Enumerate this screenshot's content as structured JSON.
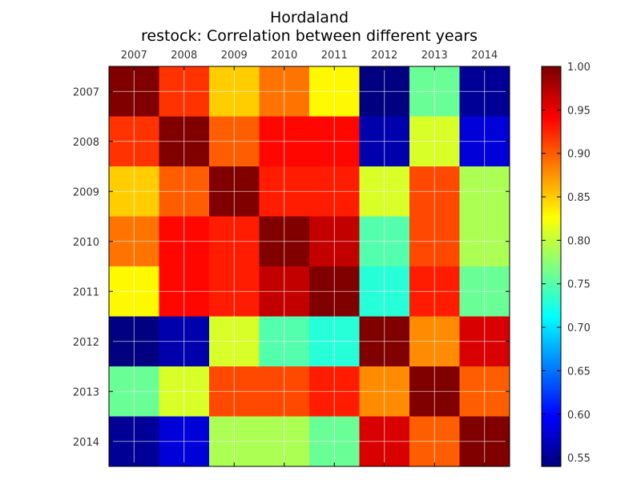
{
  "chart_data": {
    "type": "heatmap",
    "title": "Hordaland",
    "subtitle": "restock: Correlation between different years",
    "x_categories": [
      "2007",
      "2008",
      "2009",
      "2010",
      "2011",
      "2012",
      "2013",
      "2014"
    ],
    "y_categories": [
      "2007",
      "2008",
      "2009",
      "2010",
      "2011",
      "2012",
      "2013",
      "2014"
    ],
    "values": [
      [
        1.0,
        0.92,
        0.85,
        0.89,
        0.83,
        0.54,
        0.76,
        0.55
      ],
      [
        0.92,
        1.0,
        0.9,
        0.94,
        0.94,
        0.56,
        0.81,
        0.58
      ],
      [
        0.85,
        0.9,
        1.0,
        0.93,
        0.93,
        0.81,
        0.91,
        0.79
      ],
      [
        0.89,
        0.94,
        0.93,
        1.0,
        0.97,
        0.75,
        0.91,
        0.79
      ],
      [
        0.83,
        0.94,
        0.93,
        0.97,
        1.0,
        0.73,
        0.93,
        0.76
      ],
      [
        0.54,
        0.56,
        0.81,
        0.75,
        0.73,
        1.0,
        0.88,
        0.96
      ],
      [
        0.76,
        0.81,
        0.91,
        0.91,
        0.93,
        0.88,
        1.0,
        0.9
      ],
      [
        0.55,
        0.58,
        0.79,
        0.79,
        0.76,
        0.96,
        0.9,
        1.0
      ]
    ],
    "colormap": "jet",
    "vmin": 0.54,
    "vmax": 1.0,
    "colorbar_ticks": [
      0.55,
      0.6,
      0.65,
      0.7,
      0.75,
      0.8,
      0.85,
      0.9,
      0.95,
      1.0
    ],
    "colorbar_tick_labels": [
      "0.55",
      "0.60",
      "0.65",
      "0.70",
      "0.75",
      "0.80",
      "0.85",
      "0.90",
      "0.95",
      "1.00"
    ],
    "x_axis_position": "top",
    "grid": true,
    "grid_color": "#ffffff"
  }
}
